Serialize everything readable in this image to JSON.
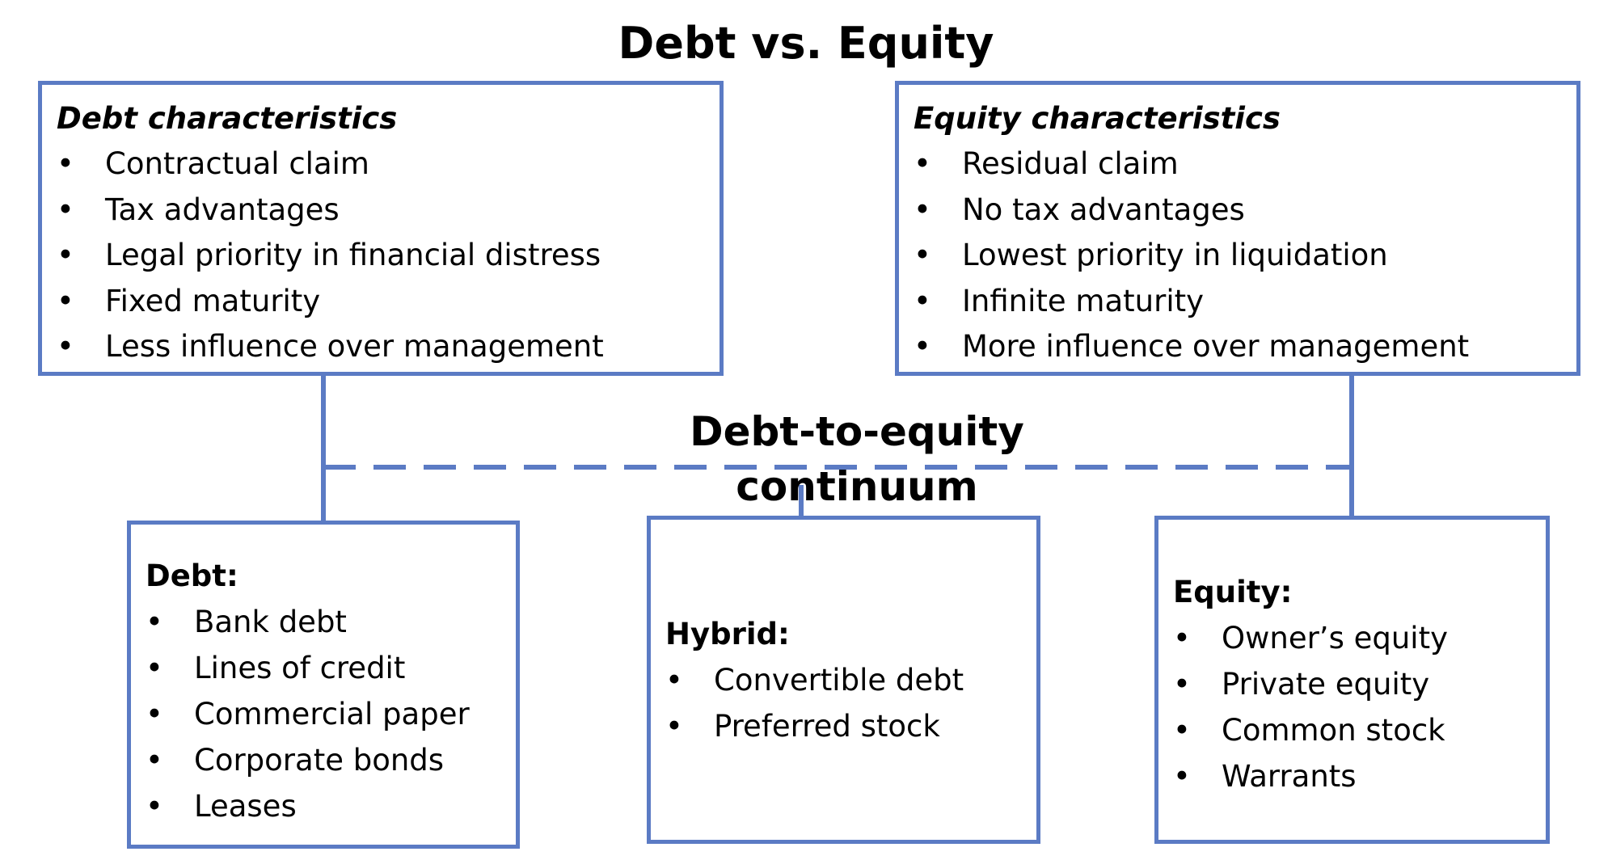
{
  "title": "Debt vs. Equity",
  "continuum_label": "Debt-to-equity continuum",
  "debt_characteristics": {
    "title": "Debt characteristics",
    "items": [
      "Contractual claim",
      "Tax advantages",
      "Legal priority in financial distress",
      "Fixed maturity",
      "Less influence over management"
    ]
  },
  "equity_characteristics": {
    "title": "Equity characteristics",
    "items": [
      "Residual claim",
      "No tax advantages",
      "Lowest priority in liquidation",
      "Infinite maturity",
      "More influence over management"
    ]
  },
  "debt": {
    "title": "Debt:",
    "items": [
      "Bank debt",
      "Lines of credit",
      "Commercial paper",
      "Corporate bonds",
      "Leases"
    ]
  },
  "hybrid": {
    "title": "Hybrid:",
    "items": [
      "Convertible debt",
      "Preferred stock"
    ]
  },
  "equity": {
    "title": "Equity:",
    "items": [
      "Owner’s equity",
      "Private equity",
      "Common stock",
      "Warrants"
    ]
  },
  "colors": {
    "box_border": "#5b7bc4",
    "connector": "#5b7bc4",
    "text": "#000000",
    "background": "#ffffff"
  }
}
